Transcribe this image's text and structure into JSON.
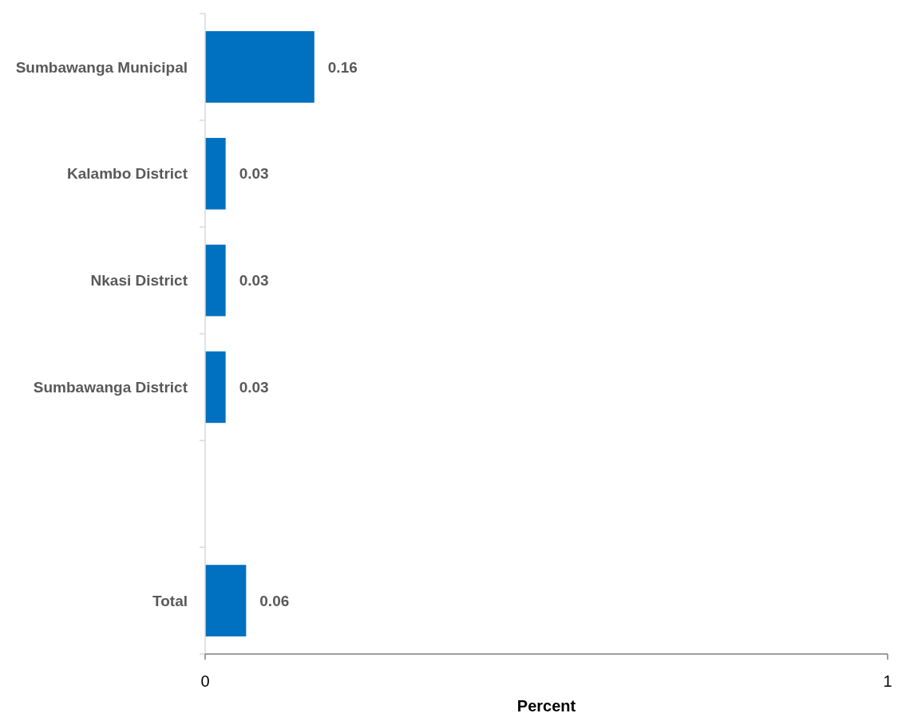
{
  "chart_data": {
    "type": "bar",
    "orientation": "horizontal",
    "categories": [
      "Sumbawanga Municipal",
      "Kalambo District",
      "Nkasi District",
      "Sumbawanga District",
      null,
      "Total"
    ],
    "values": [
      0.16,
      0.03,
      0.03,
      0.03,
      null,
      0.06
    ],
    "color": "#0070c0",
    "xlim": [
      0,
      1
    ],
    "xticks": [
      0,
      1
    ],
    "xlabel": "Percent",
    "data_labels": true
  }
}
